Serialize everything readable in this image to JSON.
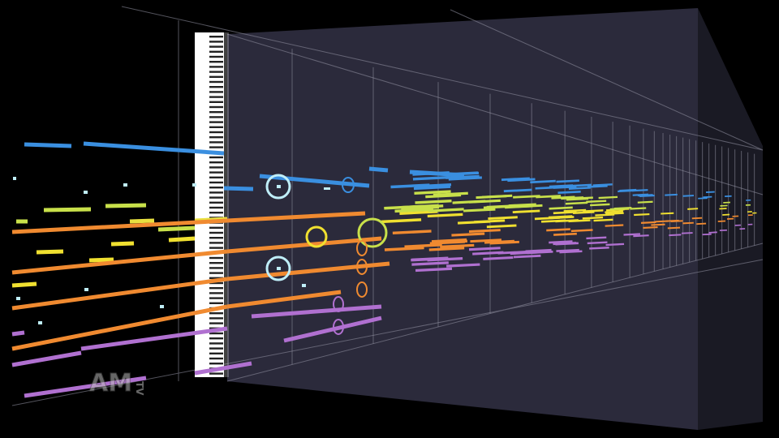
{
  "watermark": {
    "main": "AM",
    "sub": "TV"
  }
}
